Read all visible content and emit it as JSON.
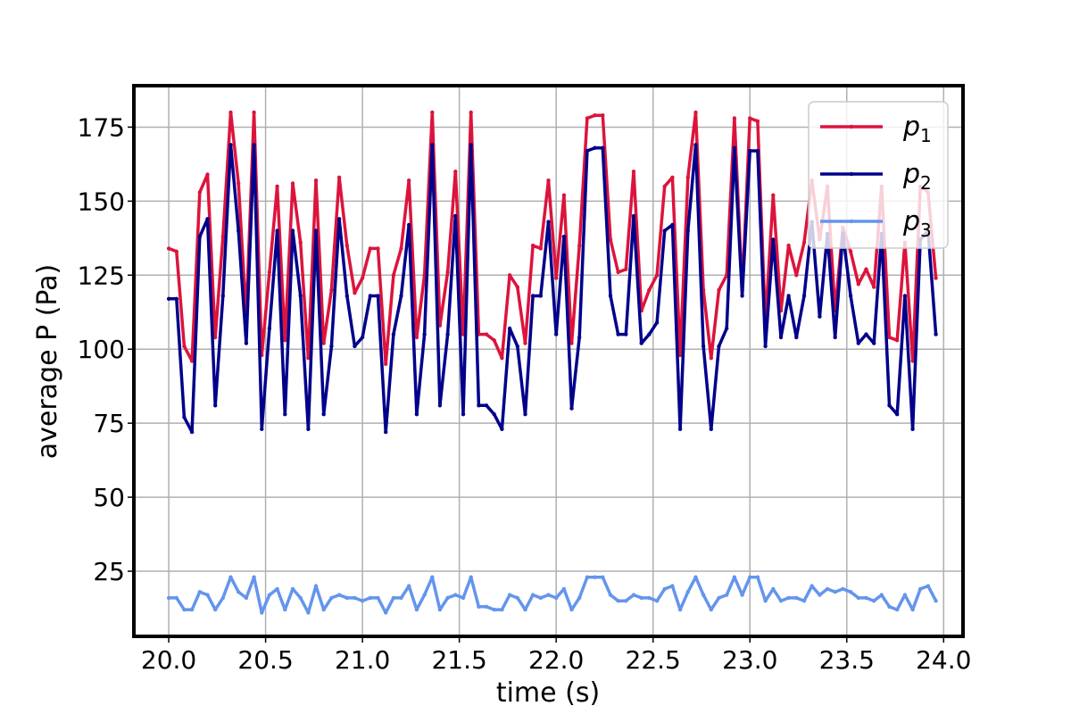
{
  "chart_data": {
    "type": "line",
    "xlabel": "time (s)",
    "ylabel": "average P (Pa)",
    "xlim": [
      19.82,
      24.1
    ],
    "ylim": [
      3,
      189
    ],
    "x_ticks": [
      "20.0",
      "20.5",
      "21.0",
      "21.5",
      "22.0",
      "22.5",
      "23.0",
      "23.5",
      "24.0"
    ],
    "y_ticks": [
      "25",
      "50",
      "75",
      "100",
      "125",
      "150",
      "175"
    ],
    "grid": true,
    "legend_position": "top-right",
    "x_start": 20.0,
    "x_step": 0.04,
    "series": [
      {
        "name": "p",
        "subscript": "1",
        "color": "#dc143c",
        "values": [
          134,
          133,
          101,
          96,
          153,
          159,
          104,
          138,
          180,
          156,
          111,
          180,
          98,
          126,
          155,
          103,
          156,
          136,
          97,
          157,
          102,
          120,
          158,
          135,
          119,
          124,
          134,
          134,
          95,
          125,
          134,
          157,
          104,
          125,
          180,
          108,
          126,
          160,
          105,
          180,
          105,
          105,
          103,
          97,
          125,
          121,
          102,
          135,
          134,
          157,
          124,
          152,
          102,
          135,
          178,
          179,
          179,
          137,
          126,
          127,
          160,
          113,
          120,
          125,
          155,
          158,
          98,
          158,
          180,
          120,
          97,
          120,
          125,
          178,
          120,
          178,
          177,
          109,
          152,
          113,
          135,
          125,
          136,
          157,
          137,
          155,
          113,
          141,
          133,
          122,
          127,
          121,
          155,
          104,
          103,
          136,
          96,
          155,
          153,
          124
        ]
      },
      {
        "name": "p",
        "subscript": "2",
        "color": "#00008b",
        "values": [
          117,
          117,
          77,
          72,
          138,
          144,
          81,
          118,
          169,
          140,
          102,
          169,
          73,
          107,
          140,
          78,
          140,
          118,
          73,
          140,
          78,
          101,
          144,
          118,
          101,
          104,
          118,
          118,
          72,
          105,
          118,
          142,
          78,
          105,
          169,
          81,
          105,
          145,
          78,
          169,
          81,
          81,
          78,
          73,
          107,
          101,
          78,
          118,
          118,
          143,
          105,
          138,
          80,
          104,
          167,
          168,
          168,
          118,
          105,
          105,
          145,
          102,
          105,
          109,
          140,
          142,
          73,
          140,
          169,
          101,
          73,
          101,
          107,
          168,
          118,
          167,
          167,
          101,
          137,
          104,
          118,
          104,
          118,
          143,
          111,
          139,
          104,
          139,
          118,
          102,
          105,
          102,
          139,
          81,
          78,
          118,
          73,
          137,
          140,
          105
        ]
      },
      {
        "name": "p",
        "subscript": "3",
        "color": "#6495ed",
        "values": [
          16,
          16,
          12,
          12,
          18,
          17,
          12,
          16,
          23,
          18,
          16,
          23,
          11,
          17,
          19,
          12,
          19,
          16,
          11,
          20,
          12,
          16,
          17,
          16,
          16,
          15,
          16,
          16,
          11,
          16,
          16,
          20,
          12,
          17,
          23,
          12,
          16,
          17,
          16,
          23,
          13,
          13,
          12,
          12,
          17,
          16,
          12,
          17,
          16,
          17,
          16,
          19,
          12,
          16,
          23,
          23,
          23,
          17,
          15,
          15,
          17,
          16,
          16,
          15,
          19,
          20,
          12,
          18,
          23,
          17,
          12,
          16,
          17,
          23,
          17,
          23,
          23,
          15,
          19,
          15,
          16,
          16,
          15,
          20,
          17,
          19,
          18,
          19,
          18,
          16,
          16,
          15,
          17,
          13,
          12,
          17,
          12,
          19,
          20,
          15
        ]
      }
    ]
  }
}
